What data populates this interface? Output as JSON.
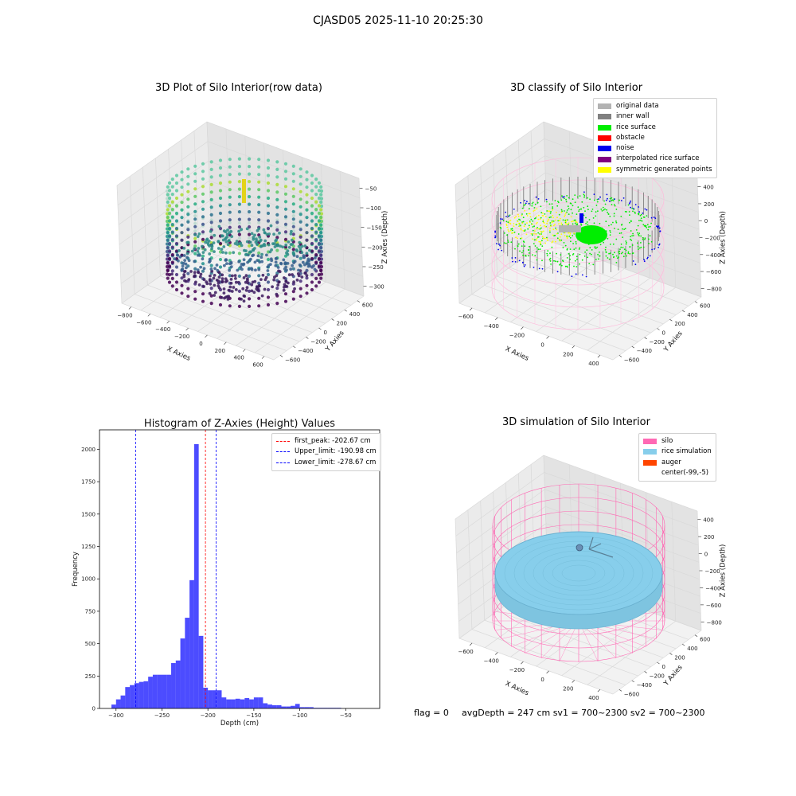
{
  "suptitle": "CJASD05 2025-11-10 20:25:30",
  "panels": {
    "raw": {
      "title": "3D Plot of Silo Interior(row data)",
      "xlabel": "X Axies",
      "ylabel": "Y Axies",
      "zlabel": "Z Axies (Depth)",
      "xticks": [
        "−800",
        "−600",
        "−400",
        "−200",
        "0",
        "200",
        "400",
        "600"
      ],
      "yticks": [
        "600",
        "400",
        "200",
        "0",
        "−200",
        "−400",
        "−600"
      ],
      "zticks": [
        "−50",
        "−100",
        "−150",
        "−200",
        "−250",
        "−300"
      ]
    },
    "classify": {
      "title": "3D classify of Silo Interior",
      "xlabel": "X Axies",
      "ylabel": "Y Axies",
      "zlabel": "Z Axies (Depth)",
      "xticks": [
        "−600",
        "−400",
        "−200",
        "0",
        "200",
        "400"
      ],
      "yticks": [
        "600",
        "400",
        "200",
        "0",
        "−200",
        "−400",
        "−600"
      ],
      "zticks": [
        "400",
        "200",
        "0",
        "−200",
        "−400",
        "−600",
        "−800"
      ],
      "legend": [
        {
          "label": "original data",
          "color": "#b3b3b3"
        },
        {
          "label": "inner wall",
          "color": "#808080"
        },
        {
          "label": "rice surface",
          "color": "#00ee00"
        },
        {
          "label": "obstacle",
          "color": "#ff0000"
        },
        {
          "label": "noise",
          "color": "#0000ee"
        },
        {
          "label": "interpolated rice surface",
          "color": "#800080"
        },
        {
          "label": "symmetric generated points",
          "color": "#ffff00"
        }
      ]
    },
    "simulation": {
      "title": "3D simulation of Silo Interior",
      "xlabel": "X Axies",
      "ylabel": "Y Axies",
      "zlabel": "Z Axies (Depth)",
      "xticks": [
        "−600",
        "−400",
        "−200",
        "0",
        "200",
        "400"
      ],
      "yticks": [
        "600",
        "400",
        "200",
        "0",
        "−200",
        "−400",
        "−600"
      ],
      "zticks": [
        "400",
        "200",
        "0",
        "−200",
        "−400",
        "−600",
        "−800"
      ],
      "legend": [
        {
          "label": "silo",
          "color": "#ff69b4"
        },
        {
          "label": "rice simulation",
          "color": "#87ceeb"
        },
        {
          "label": "auger",
          "color": "#ff4500"
        },
        {
          "label": "center(-99,-5)",
          "color": ""
        }
      ]
    }
  },
  "footer": {
    "flag": "flag = 0",
    "info": "avgDepth = 247 cm  sv1 = 700~2300  sv2 = 700~2300"
  },
  "chart_data": [
    {
      "type": "bar",
      "title": "Histogram of Z-Axies (Height) Values",
      "xlabel": "Depth (cm)",
      "ylabel": "Frequency",
      "xlim": [
        -318,
        -13
      ],
      "ylim": [
        0,
        2150
      ],
      "xticks": [
        -300,
        -250,
        -200,
        -150,
        -100,
        -50
      ],
      "yticks": [
        0,
        250,
        500,
        750,
        1000,
        1250,
        1500,
        1750,
        2000
      ],
      "bar_color": "#0000ff",
      "bins": [
        {
          "left": -305,
          "right": -300,
          "value": 30
        },
        {
          "left": -300,
          "right": -295,
          "value": 70
        },
        {
          "left": -295,
          "right": -290,
          "value": 100
        },
        {
          "left": -290,
          "right": -285,
          "value": 165
        },
        {
          "left": -285,
          "right": -280,
          "value": 180
        },
        {
          "left": -280,
          "right": -275,
          "value": 195
        },
        {
          "left": -275,
          "right": -270,
          "value": 205
        },
        {
          "left": -270,
          "right": -265,
          "value": 210
        },
        {
          "left": -265,
          "right": -260,
          "value": 245
        },
        {
          "left": -260,
          "right": -255,
          "value": 260
        },
        {
          "left": -255,
          "right": -250,
          "value": 260
        },
        {
          "left": -250,
          "right": -245,
          "value": 260
        },
        {
          "left": -245,
          "right": -240,
          "value": 260
        },
        {
          "left": -240,
          "right": -235,
          "value": 350
        },
        {
          "left": -235,
          "right": -230,
          "value": 370
        },
        {
          "left": -230,
          "right": -225,
          "value": 540
        },
        {
          "left": -225,
          "right": -220,
          "value": 700
        },
        {
          "left": -220,
          "right": -215,
          "value": 990
        },
        {
          "left": -215,
          "right": -210,
          "value": 2040
        },
        {
          "left": -210,
          "right": -205,
          "value": 560
        },
        {
          "left": -205,
          "right": -200,
          "value": 160
        },
        {
          "left": -200,
          "right": -195,
          "value": 140
        },
        {
          "left": -195,
          "right": -190,
          "value": 140
        },
        {
          "left": -190,
          "right": -185,
          "value": 140
        },
        {
          "left": -185,
          "right": -180,
          "value": 85
        },
        {
          "left": -180,
          "right": -175,
          "value": 70
        },
        {
          "left": -175,
          "right": -170,
          "value": 70
        },
        {
          "left": -170,
          "right": -165,
          "value": 75
        },
        {
          "left": -165,
          "right": -160,
          "value": 70
        },
        {
          "left": -160,
          "right": -155,
          "value": 80
        },
        {
          "left": -155,
          "right": -150,
          "value": 70
        },
        {
          "left": -150,
          "right": -145,
          "value": 85
        },
        {
          "left": -145,
          "right": -140,
          "value": 85
        },
        {
          "left": -140,
          "right": -135,
          "value": 40
        },
        {
          "left": -135,
          "right": -130,
          "value": 30
        },
        {
          "left": -130,
          "right": -125,
          "value": 25
        },
        {
          "left": -125,
          "right": -120,
          "value": 25
        },
        {
          "left": -120,
          "right": -115,
          "value": 15
        },
        {
          "left": -115,
          "right": -110,
          "value": 15
        },
        {
          "left": -110,
          "right": -105,
          "value": 20
        },
        {
          "left": -105,
          "right": -100,
          "value": 35
        },
        {
          "left": -100,
          "right": -95,
          "value": 10
        },
        {
          "left": -95,
          "right": -90,
          "value": 10
        },
        {
          "left": -90,
          "right": -85,
          "value": 10
        },
        {
          "left": -85,
          "right": -80,
          "value": 5
        },
        {
          "left": -80,
          "right": -75,
          "value": 5
        },
        {
          "left": -75,
          "right": -70,
          "value": 5
        },
        {
          "left": -70,
          "right": -65,
          "value": 5
        },
        {
          "left": -65,
          "right": -60,
          "value": 5
        },
        {
          "left": -60,
          "right": -55,
          "value": 5
        }
      ],
      "vlines": [
        {
          "label": "first_peak: -202.67 cm",
          "x": -202.67,
          "color": "#ff0000"
        },
        {
          "label": "Upper_limit: -190.98 cm",
          "x": -190.98,
          "color": "#0000ff"
        },
        {
          "label": "Lower_limit: -278.67 cm",
          "x": -278.67,
          "color": "#0000ff"
        }
      ]
    }
  ]
}
